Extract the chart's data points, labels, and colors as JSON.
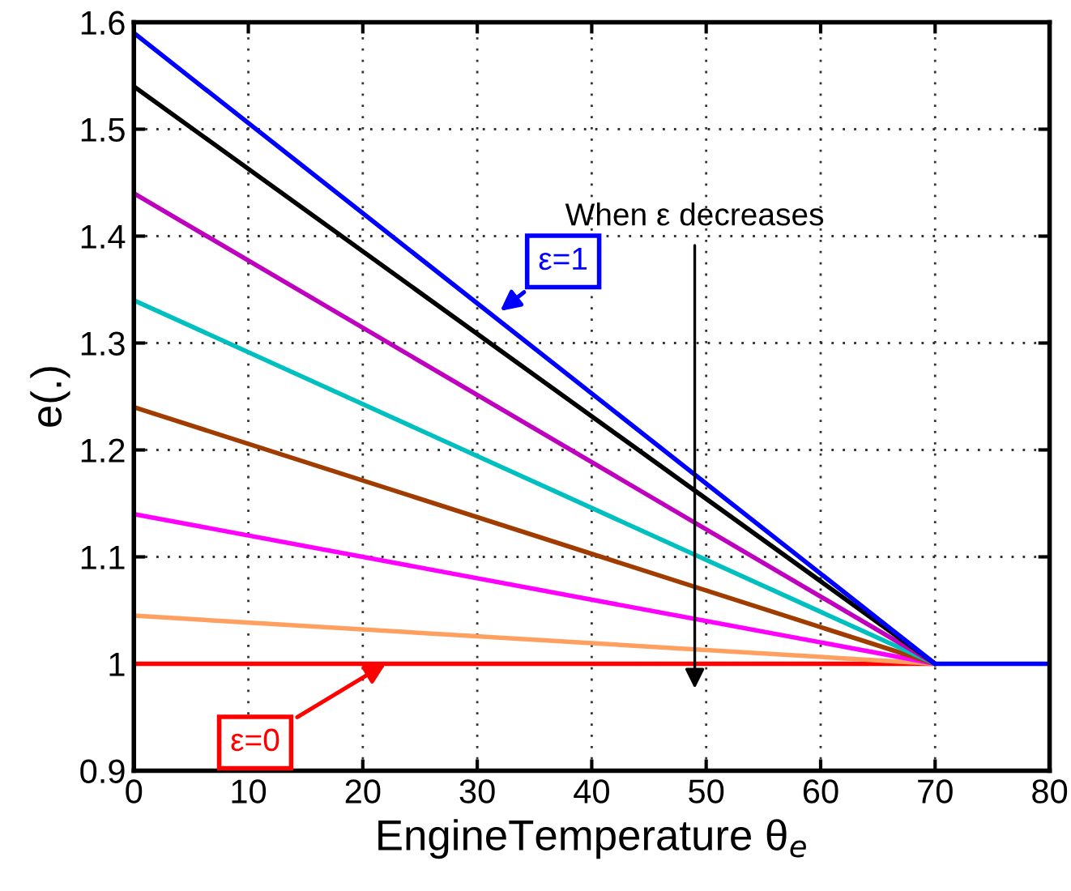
{
  "chart_data": {
    "type": "line",
    "xlabel": "EngineTemperature θ$_{e}$",
    "ylabel": "e(.)",
    "xlim": [
      0,
      80
    ],
    "ylim": [
      0.9,
      1.6
    ],
    "xticks": [
      0,
      10,
      20,
      30,
      40,
      50,
      60,
      70,
      80
    ],
    "yticks": [
      0.9,
      1,
      1.1,
      1.2,
      1.3,
      1.4,
      1.5,
      1.6
    ],
    "grid": true,
    "line_style": "solid",
    "series": [
      {
        "color": "#ff0000",
        "x": [
          0,
          70
        ],
        "values": [
          1.0,
          1.0
        ]
      },
      {
        "color": "#ffa060",
        "x": [
          0,
          70
        ],
        "values": [
          1.045,
          1.0
        ]
      },
      {
        "color": "#ff00ff",
        "x": [
          0,
          70
        ],
        "values": [
          1.14,
          1.0
        ]
      },
      {
        "color": "#a03c00",
        "x": [
          0,
          70
        ],
        "values": [
          1.24,
          1.0
        ]
      },
      {
        "color": "#00bfbf",
        "x": [
          0,
          70
        ],
        "values": [
          1.34,
          1.0
        ]
      },
      {
        "color": "#bf00bf",
        "x": [
          0,
          70
        ],
        "values": [
          1.44,
          1.0
        ]
      },
      {
        "color": "#000000",
        "x": [
          0,
          70
        ],
        "values": [
          1.54,
          1.0
        ]
      },
      {
        "color": "#0000ff",
        "x": [
          0,
          70,
          80
        ],
        "values": [
          1.59,
          1.0,
          1.0
        ]
      }
    ],
    "annotations": [
      {
        "text": "ε=1",
        "x": 32,
        "y": 1.33
      },
      "When ε decreases",
      {
        "text": "ε=0",
        "x": 22,
        "y": 1.0
      }
    ]
  }
}
